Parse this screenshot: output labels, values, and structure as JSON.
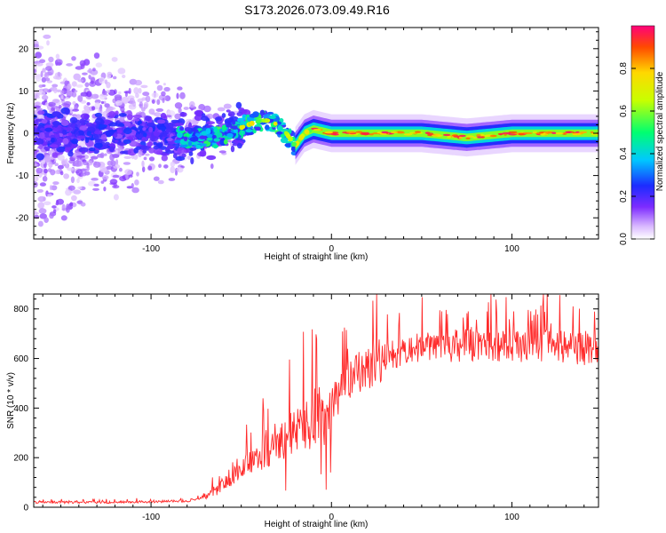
{
  "title": "S173.2026.073.09.49.R16",
  "colors": {
    "trace": "#ff2a2a",
    "axis": "#000000"
  },
  "chart_data": [
    {
      "type": "heatmap",
      "title": "S173.2026.073.09.49.R16",
      "xlabel": "Height of straight line (km)",
      "ylabel": "Frequency (Hz)",
      "xlim": [
        -165,
        148
      ],
      "ylim": [
        -25,
        25
      ],
      "xticks": [
        -100,
        0,
        100
      ],
      "yticks": [
        -20,
        -10,
        0,
        10,
        20
      ],
      "colorbar": {
        "label": "Normalized spectral amplitude",
        "range": [
          0,
          1
        ],
        "ticks": [
          0.0,
          0.2,
          0.4,
          0.6,
          0.8
        ]
      },
      "ridge": [
        {
          "x": -165,
          "y": 0
        },
        {
          "x": -100,
          "y": 0
        },
        {
          "x": -80,
          "y": -1
        },
        {
          "x": -65,
          "y": -1
        },
        {
          "x": -52,
          "y": 1
        },
        {
          "x": -40,
          "y": 3
        },
        {
          "x": -33,
          "y": 3
        },
        {
          "x": -25,
          "y": 0
        },
        {
          "x": -20,
          "y": -3
        },
        {
          "x": -15,
          "y": 0
        },
        {
          "x": -10,
          "y": 1
        },
        {
          "x": 0,
          "y": 0
        },
        {
          "x": 50,
          "y": 0
        },
        {
          "x": 75,
          "y": -1
        },
        {
          "x": 100,
          "y": 0
        },
        {
          "x": 148,
          "y": 0
        }
      ]
    },
    {
      "type": "line",
      "xlabel": "Height of straight line (km)",
      "ylabel": "SNR (10 * v/v)",
      "xlim": [
        -165,
        148
      ],
      "ylim": [
        0,
        860
      ],
      "xticks": [
        -100,
        0,
        100
      ],
      "yticks": [
        0,
        200,
        400,
        600,
        800
      ],
      "series": [
        {
          "name": "SNR",
          "points": [
            {
              "x": -165,
              "y": 20
            },
            {
              "x": -120,
              "y": 20
            },
            {
              "x": -80,
              "y": 25
            },
            {
              "x": -70,
              "y": 40
            },
            {
              "x": -60,
              "y": 90
            },
            {
              "x": -50,
              "y": 170
            },
            {
              "x": -40,
              "y": 220
            },
            {
              "x": -30,
              "y": 260
            },
            {
              "x": -20,
              "y": 310
            },
            {
              "x": -10,
              "y": 360
            },
            {
              "x": 0,
              "y": 420
            },
            {
              "x": 10,
              "y": 500
            },
            {
              "x": 20,
              "y": 570
            },
            {
              "x": 30,
              "y": 610
            },
            {
              "x": 40,
              "y": 640
            },
            {
              "x": 60,
              "y": 650
            },
            {
              "x": 80,
              "y": 655
            },
            {
              "x": 100,
              "y": 650
            },
            {
              "x": 120,
              "y": 655
            },
            {
              "x": 148,
              "y": 630
            }
          ]
        }
      ]
    }
  ]
}
